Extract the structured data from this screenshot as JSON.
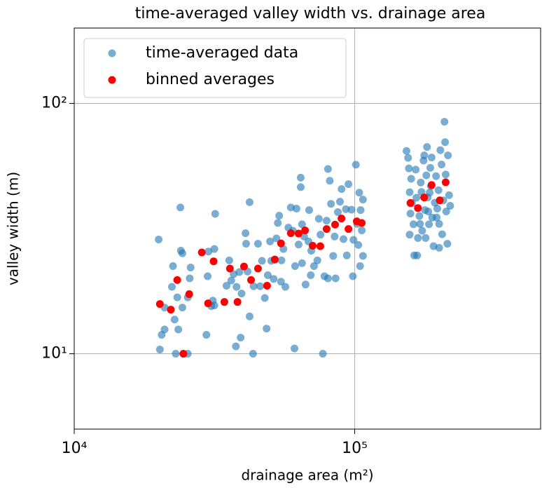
{
  "chart_data": {
    "type": "scatter",
    "title": "time-averaged valley width vs. drainage area",
    "xlabel": "drainage area (m²)",
    "ylabel": "valley width (m)",
    "xscale": "log",
    "yscale": "log",
    "xlim": [
      10000,
      460000
    ],
    "ylim": [
      5,
      200
    ],
    "xticks": [
      {
        "value": 10000,
        "label": "10⁴"
      },
      {
        "value": 100000,
        "label": "10⁵"
      }
    ],
    "yticks": [
      {
        "value": 10,
        "label": "10¹"
      },
      {
        "value": 100,
        "label": "10²"
      }
    ],
    "grid": true,
    "legend": "upper left",
    "series": [
      {
        "name": "time-averaged data",
        "color": "#1f77b4",
        "alpha": 0.6,
        "x": [
          20000,
          20200,
          20500,
          21000,
          21000,
          22300,
          22500,
          22800,
          23000,
          23300,
          23500,
          23900,
          24000,
          24300,
          24300,
          25400,
          25800,
          26000,
          25400,
          29600,
          29900,
          30100,
          30800,
          31200,
          31600,
          31800,
          31600,
          34900,
          35700,
          36300,
          37000,
          37700,
          37900,
          38800,
          39200,
          39500,
          41000,
          40800,
          41500,
          42200,
          42200,
          43400,
          43600,
          45200,
          46000,
          46700,
          47800,
          48500,
          49000,
          49900,
          50400,
          51400,
          52600,
          53200,
          53800,
          54600,
          54800,
          55700,
          56600,
          58000,
          59200,
          60200,
          61000,
          61300,
          62000,
          63100,
          64200,
          64200,
          64900,
          64900,
          66000,
          66800,
          68400,
          68800,
          69700,
          70000,
          71600,
          73600,
          74500,
          75500,
          77000,
          78000,
          79400,
          80300,
          80300,
          81500,
          82300,
          83800,
          84800,
          85500,
          87100,
          88600,
          89800,
          91200,
          93000,
          93700,
          95000,
          97400,
          98500,
          99000,
          101000,
          102000,
          103000,
          103800,
          104500,
          105000,
          106000,
          107000,
          107000,
          153000,
          155000,
          156000,
          157000,
          157000,
          158000,
          159000,
          160000,
          162000,
          163000,
          165000,
          167000,
          168000,
          170000,
          172000,
          173000,
          174000,
          176000,
          178000,
          179000,
          180000,
          181000,
          182000,
          184000,
          186000,
          187000,
          188000,
          189000,
          191000,
          193000,
          195000,
          197000,
          199000,
          200000,
          202000,
          204000,
          205000,
          207000,
          209000,
          210000,
          211000,
          212000,
          214000,
          215000,
          217000,
          219000,
          200000,
          196000,
          185000,
          177000,
          166000,
          171000,
          183000
        ],
        "values": [
          28.6,
          10.4,
          11.9,
          12.5,
          15.3,
          18.5,
          22.4,
          13.7,
          10,
          16.8,
          12.5,
          38.4,
          25.8,
          25.2,
          15.3,
          10,
          20,
          22.1,
          16.8,
          11.9,
          20.4,
          25.6,
          15.5,
          16.3,
          26.2,
          36.2,
          15.6,
          18.7,
          23.6,
          19.6,
          20.8,
          10.7,
          18.5,
          21.2,
          11.6,
          17.4,
          27.5,
          30.3,
          21.3,
          40.3,
          14.1,
          10,
          18.6,
          27.5,
          18.6,
          23.5,
          16.7,
          12.6,
          20.6,
          28.1,
          23.5,
          19.9,
          28.9,
          33.3,
          35.6,
          19.4,
          23.6,
          26.2,
          18.5,
          31.9,
          38.4,
          31,
          10.5,
          22.4,
          38,
          27.3,
          50.5,
          46.3,
          23,
          32.9,
          29.4,
          18.9,
          28.1,
          37.5,
          20.6,
          25.8,
          22.4,
          23.6,
          34.6,
          29.9,
          10,
          20.4,
          34,
          54.7,
          20,
          49.1,
          39.7,
          24.6,
          29.4,
          20,
          36.8,
          40.5,
          45.5,
          28.7,
          37.8,
          24.7,
          47.6,
          37.6,
          20.4,
          28.5,
          56.9,
          33,
          27.2,
          44,
          22.4,
          37.5,
          31.1,
          41.3,
          24.6,
          64.6,
          60.6,
          55,
          44.2,
          29.9,
          36.3,
          50,
          40,
          32.9,
          24.7,
          54.4,
          24.7,
          29,
          35.5,
          48.3,
          44.3,
          31,
          59.1,
          37.5,
          29,
          51.6,
          67,
          42.1,
          32.9,
          55.3,
          46.7,
          60.8,
          35,
          26.9,
          40.1,
          51.2,
          38,
          45,
          33,
          65,
          57,
          30,
          41,
          84.5,
          70,
          52,
          37,
          27.5,
          62,
          43,
          39,
          26.5,
          35,
          44,
          62,
          42,
          33,
          37
        ]
      },
      {
        "name": "binned averages",
        "color": "#ff0000",
        "alpha": 1,
        "x": [
          20200,
          22100,
          23300,
          24500,
          25700,
          28500,
          30000,
          31400,
          34300,
          35900,
          38200,
          40300,
          42700,
          45200,
          48700,
          51900,
          54600,
          59200,
          63100,
          66500,
          70800,
          75400,
          79400,
          85100,
          89700,
          95000,
          101700,
          105900,
          158000,
          168000,
          176800,
          188000,
          201000,
          211000
        ],
        "values": [
          15.8,
          15,
          19.7,
          10,
          17.3,
          25.4,
          15.9,
          23.4,
          16.1,
          21.9,
          16.1,
          22.3,
          19.7,
          21.9,
          18.7,
          23.8,
          27.6,
          30.3,
          30.2,
          31.1,
          27,
          26.9,
          31.5,
          32.8,
          34.7,
          31.5,
          33.8,
          33.3,
          40,
          38.2,
          42.1,
          47.2,
          41,
          48.4
        ]
      }
    ]
  }
}
